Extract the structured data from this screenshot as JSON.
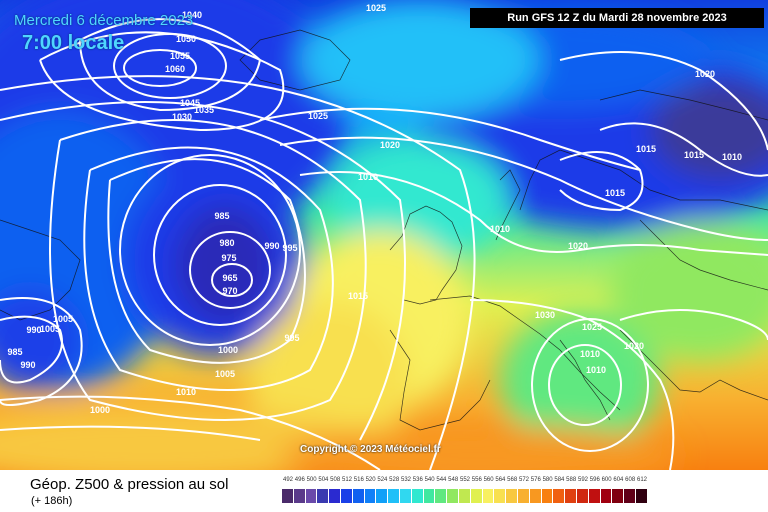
{
  "header": {
    "date": "Mercredi 6 décembre 2023",
    "time": "7:00 locale",
    "run": "Run GFS 12 Z du Mardi 28 novembre 2023"
  },
  "copyright": "Copyright © 2023 Météociel.fr",
  "footer": {
    "title": "Géop. Z500 & pression au sol",
    "subtitle": "(+ 186h)"
  },
  "legend": {
    "values": [
      "492",
      "496",
      "500",
      "504",
      "508",
      "512",
      "516",
      "520",
      "524",
      "528",
      "532",
      "536",
      "540",
      "544",
      "548",
      "552",
      "556",
      "560",
      "564",
      "568",
      "572",
      "576",
      "580",
      "584",
      "588",
      "592",
      "596",
      "600",
      "604",
      "608",
      "612"
    ],
    "colors": [
      "#4a2a6a",
      "#5a3a8a",
      "#6a4aaa",
      "#3a3ab0",
      "#2a2ad0",
      "#1a40e8",
      "#1060f0",
      "#1080f8",
      "#10a0f8",
      "#20c0f8",
      "#30d8f0",
      "#30e8d0",
      "#40e8a0",
      "#60e880",
      "#90e860",
      "#c0e850",
      "#e0f050",
      "#f8f060",
      "#f8e050",
      "#f8c840",
      "#f8b030",
      "#f89820",
      "#f88010",
      "#f06010",
      "#e04010",
      "#d02810",
      "#c01010",
      "#a00010",
      "#800010",
      "#600018",
      "#300010"
    ]
  },
  "isobars": [
    {
      "text": "1040"
    },
    {
      "text": "1050"
    },
    {
      "text": "1055"
    },
    {
      "text": "1060"
    },
    {
      "text": "1045"
    },
    {
      "text": "1035"
    },
    {
      "text": "1030"
    },
    {
      "text": "1025"
    },
    {
      "text": "1025"
    },
    {
      "text": "1020"
    },
    {
      "text": "1010"
    },
    {
      "text": "985"
    },
    {
      "text": "980"
    },
    {
      "text": "975"
    },
    {
      "text": "965"
    },
    {
      "text": "970"
    },
    {
      "text": "990"
    },
    {
      "text": "995"
    },
    {
      "text": "1015"
    },
    {
      "text": "1005"
    },
    {
      "text": "995"
    },
    {
      "text": "1000"
    },
    {
      "text": "1005"
    },
    {
      "text": "1010"
    },
    {
      "text": "1000"
    },
    {
      "text": "1005"
    },
    {
      "text": "990"
    },
    {
      "text": "990"
    },
    {
      "text": "985"
    },
    {
      "text": "1020"
    },
    {
      "text": "1015"
    },
    {
      "text": "1015"
    },
    {
      "text": "1010"
    },
    {
      "text": "1015"
    },
    {
      "text": "1010"
    },
    {
      "text": "1020"
    },
    {
      "text": "1030"
    },
    {
      "text": "1025"
    },
    {
      "text": "1020"
    },
    {
      "text": "1010"
    },
    {
      "text": "1010"
    }
  ]
}
